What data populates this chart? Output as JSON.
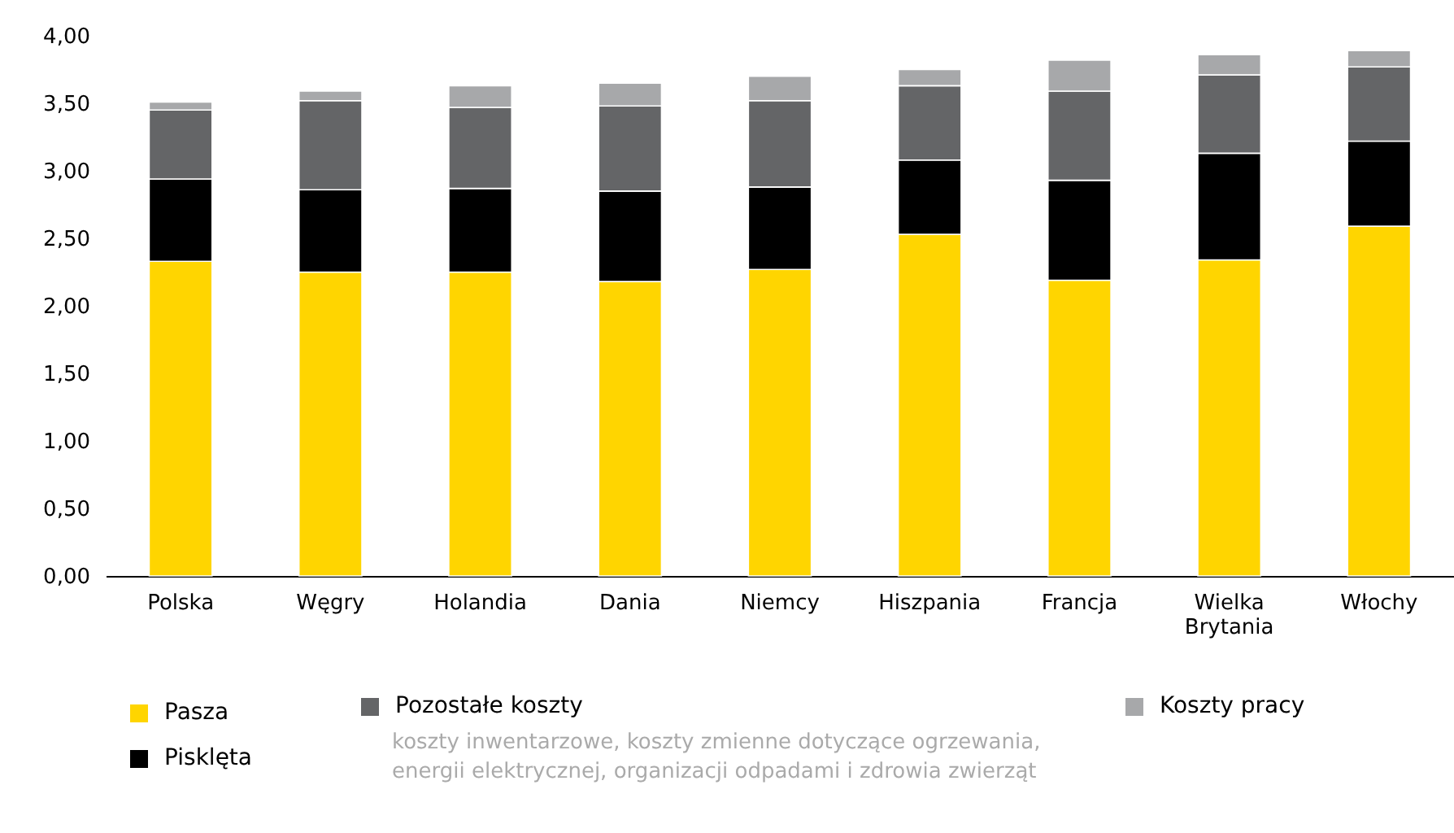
{
  "chart_data": {
    "type": "bar",
    "stacked": true,
    "categories": [
      "Polska",
      "Węgry",
      "Holandia",
      "Dania",
      "Niemcy",
      "Hiszpania",
      "Francja",
      "Wielka Brytania",
      "Włochy"
    ],
    "series": [
      {
        "name": "Pasza",
        "color": "#ffd500",
        "values": [
          2.33,
          2.25,
          2.25,
          2.18,
          2.27,
          2.53,
          2.19,
          2.34,
          2.59
        ]
      },
      {
        "name": "Pisklęta",
        "color": "#000000",
        "values": [
          0.61,
          0.61,
          0.62,
          0.67,
          0.61,
          0.55,
          0.74,
          0.79,
          0.63
        ]
      },
      {
        "name": "Pozostałe koszty",
        "color": "#646567",
        "values": [
          0.51,
          0.66,
          0.6,
          0.63,
          0.64,
          0.55,
          0.66,
          0.58,
          0.55
        ]
      },
      {
        "name": "Koszty pracy",
        "color": "#a7a8aa",
        "values": [
          0.06,
          0.07,
          0.16,
          0.17,
          0.18,
          0.12,
          0.23,
          0.15,
          0.12
        ]
      }
    ],
    "ylim": [
      0,
      4
    ],
    "yticks": [
      {
        "value": 0,
        "label": "0,00"
      },
      {
        "value": 0.5,
        "label": "0,50"
      },
      {
        "value": 1,
        "label": "1,00"
      },
      {
        "value": 1.5,
        "label": "1,50"
      },
      {
        "value": 2,
        "label": "2,00"
      },
      {
        "value": 2.5,
        "label": "2,50"
      },
      {
        "value": 3,
        "label": "3,00"
      },
      {
        "value": 3.5,
        "label": "3,50"
      },
      {
        "value": 4,
        "label": "4,00"
      }
    ],
    "grid": false,
    "legend": "bottom",
    "annotations": [
      "koszty inwentarzowe, koszty zmienne dotyczące ogrzewania, energii elektrycznej, organizacji odpadami i zdrowia zwierząt"
    ]
  }
}
